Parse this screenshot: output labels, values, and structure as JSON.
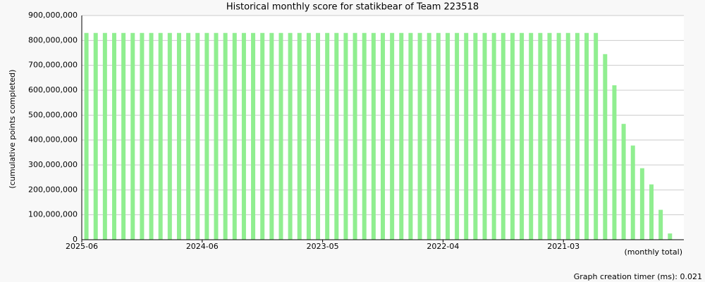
{
  "chart_data": {
    "type": "bar",
    "title": "Historical monthly score for statikbear of Team 223518",
    "y_label": "(cumulative points completed)",
    "x_label": "(monthly total)",
    "footer": "Graph creation timer (ms): 0.021",
    "color": "#90ee90",
    "grid": true,
    "categories": [
      "2025-06",
      null,
      null,
      null,
      null,
      null,
      null,
      null,
      null,
      null,
      null,
      null,
      null,
      "2024-06",
      null,
      null,
      null,
      null,
      null,
      null,
      null,
      null,
      null,
      null,
      null,
      null,
      "2023-05",
      null,
      null,
      null,
      null,
      null,
      null,
      null,
      null,
      null,
      null,
      null,
      null,
      "2022-04",
      null,
      null,
      null,
      null,
      null,
      null,
      null,
      null,
      null,
      null,
      null,
      null,
      "2021-03",
      null,
      null,
      null,
      null,
      null,
      null,
      null,
      null,
      null,
      null,
      null,
      null
    ],
    "values": [
      830000000,
      830000000,
      830000000,
      830000000,
      830000000,
      830000000,
      830000000,
      830000000,
      830000000,
      830000000,
      830000000,
      830000000,
      830000000,
      830000000,
      830000000,
      830000000,
      830000000,
      830000000,
      830000000,
      830000000,
      830000000,
      830000000,
      830000000,
      830000000,
      830000000,
      830000000,
      830000000,
      830000000,
      830000000,
      830000000,
      830000000,
      830000000,
      830000000,
      830000000,
      830000000,
      830000000,
      830000000,
      830000000,
      830000000,
      830000000,
      830000000,
      830000000,
      830000000,
      830000000,
      830000000,
      830000000,
      830000000,
      830000000,
      830000000,
      830000000,
      830000000,
      830000000,
      830000000,
      830000000,
      830000000,
      830000000,
      745000000,
      620000000,
      465000000,
      378000000,
      287000000,
      222000000,
      120000000,
      25000000,
      0
    ],
    "ylim": [
      0,
      900000000
    ],
    "yticks": [
      0,
      {
        "value": 100000000,
        "label": "100,000,000"
      },
      {
        "value": 200000000,
        "label": "200,000,000"
      },
      {
        "value": 300000000,
        "label": "300,000,000"
      },
      {
        "value": 400000000,
        "label": "400,000,000"
      },
      {
        "value": 500000000,
        "label": "500,000,000"
      },
      {
        "value": 600000000,
        "label": "600,000,000"
      },
      {
        "value": 700000000,
        "label": "700,000,000"
      },
      {
        "value": 800000000,
        "label": "800,000,000"
      },
      {
        "value": 900000000,
        "label": "900,000,000"
      }
    ]
  }
}
